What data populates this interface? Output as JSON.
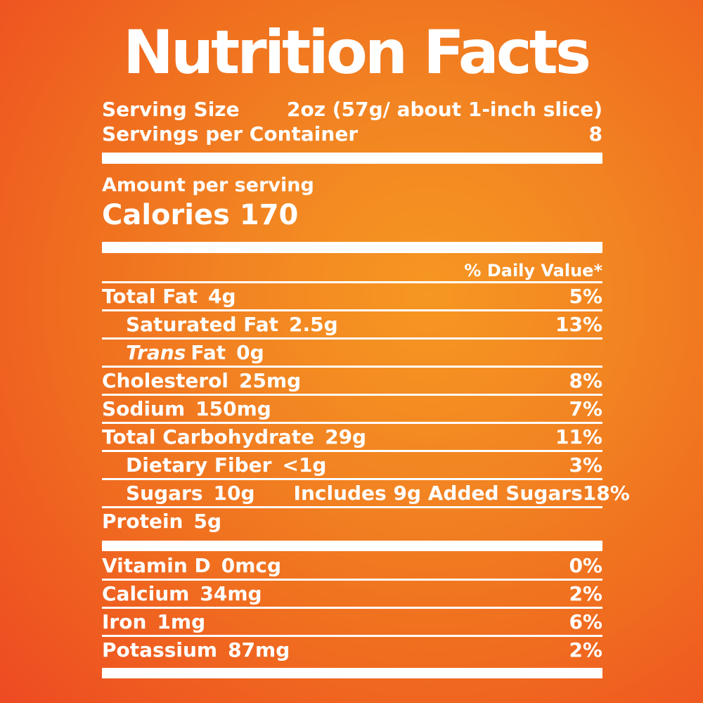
{
  "colors": {
    "background_center": "#F69722",
    "background_edge": "#EE4B22",
    "text": "#FFFFFF"
  },
  "title": "Nutrition Facts",
  "serving": {
    "size_label": "Serving Size",
    "size_value": "2oz (57g/ about 1-inch slice)",
    "container_label": "Servings per Container",
    "container_value": "8"
  },
  "calories": {
    "amount_label": "Amount per serving",
    "label": "Calories",
    "value": "170"
  },
  "daily_value_header": "% Daily Value*",
  "nutrients": [
    {
      "italic_name": "",
      "name": "Total Fat",
      "amount": "4g",
      "extra": "",
      "percent": "5%",
      "indent": false
    },
    {
      "italic_name": "",
      "name": "Saturated Fat",
      "amount": "2.5g",
      "extra": "",
      "percent": "13%",
      "indent": true
    },
    {
      "italic_name": "Trans",
      "name": "Fat",
      "amount": "0g",
      "extra": "",
      "percent": "",
      "indent": true
    },
    {
      "italic_name": "",
      "name": "Cholesterol",
      "amount": "25mg",
      "extra": "",
      "percent": "8%",
      "indent": false
    },
    {
      "italic_name": "",
      "name": "Sodium",
      "amount": "150mg",
      "extra": "",
      "percent": "7%",
      "indent": false
    },
    {
      "italic_name": "",
      "name": "Total Carbohydrate",
      "amount": "29g",
      "extra": "",
      "percent": "11%",
      "indent": false
    },
    {
      "italic_name": "",
      "name": "Dietary Fiber",
      "amount": "<1g",
      "extra": "",
      "percent": "3%",
      "indent": true
    },
    {
      "italic_name": "",
      "name": "Sugars",
      "amount": "10g",
      "extra": "Includes 9g Added Sugars",
      "percent": "18%",
      "indent": true
    },
    {
      "italic_name": "",
      "name": "Protein",
      "amount": "5g",
      "extra": "",
      "percent": "",
      "indent": false
    }
  ],
  "micronutrients": [
    {
      "italic_name": "",
      "name": "Vitamin D",
      "amount": "0mcg",
      "extra": "",
      "percent": "0%",
      "indent": false
    },
    {
      "italic_name": "",
      "name": "Calcium",
      "amount": "34mg",
      "extra": "",
      "percent": "2%",
      "indent": false
    },
    {
      "italic_name": "",
      "name": "Iron",
      "amount": "1mg",
      "extra": "",
      "percent": "6%",
      "indent": false
    },
    {
      "italic_name": "",
      "name": "Potassium",
      "amount": "87mg",
      "extra": "",
      "percent": "2%",
      "indent": false
    }
  ]
}
